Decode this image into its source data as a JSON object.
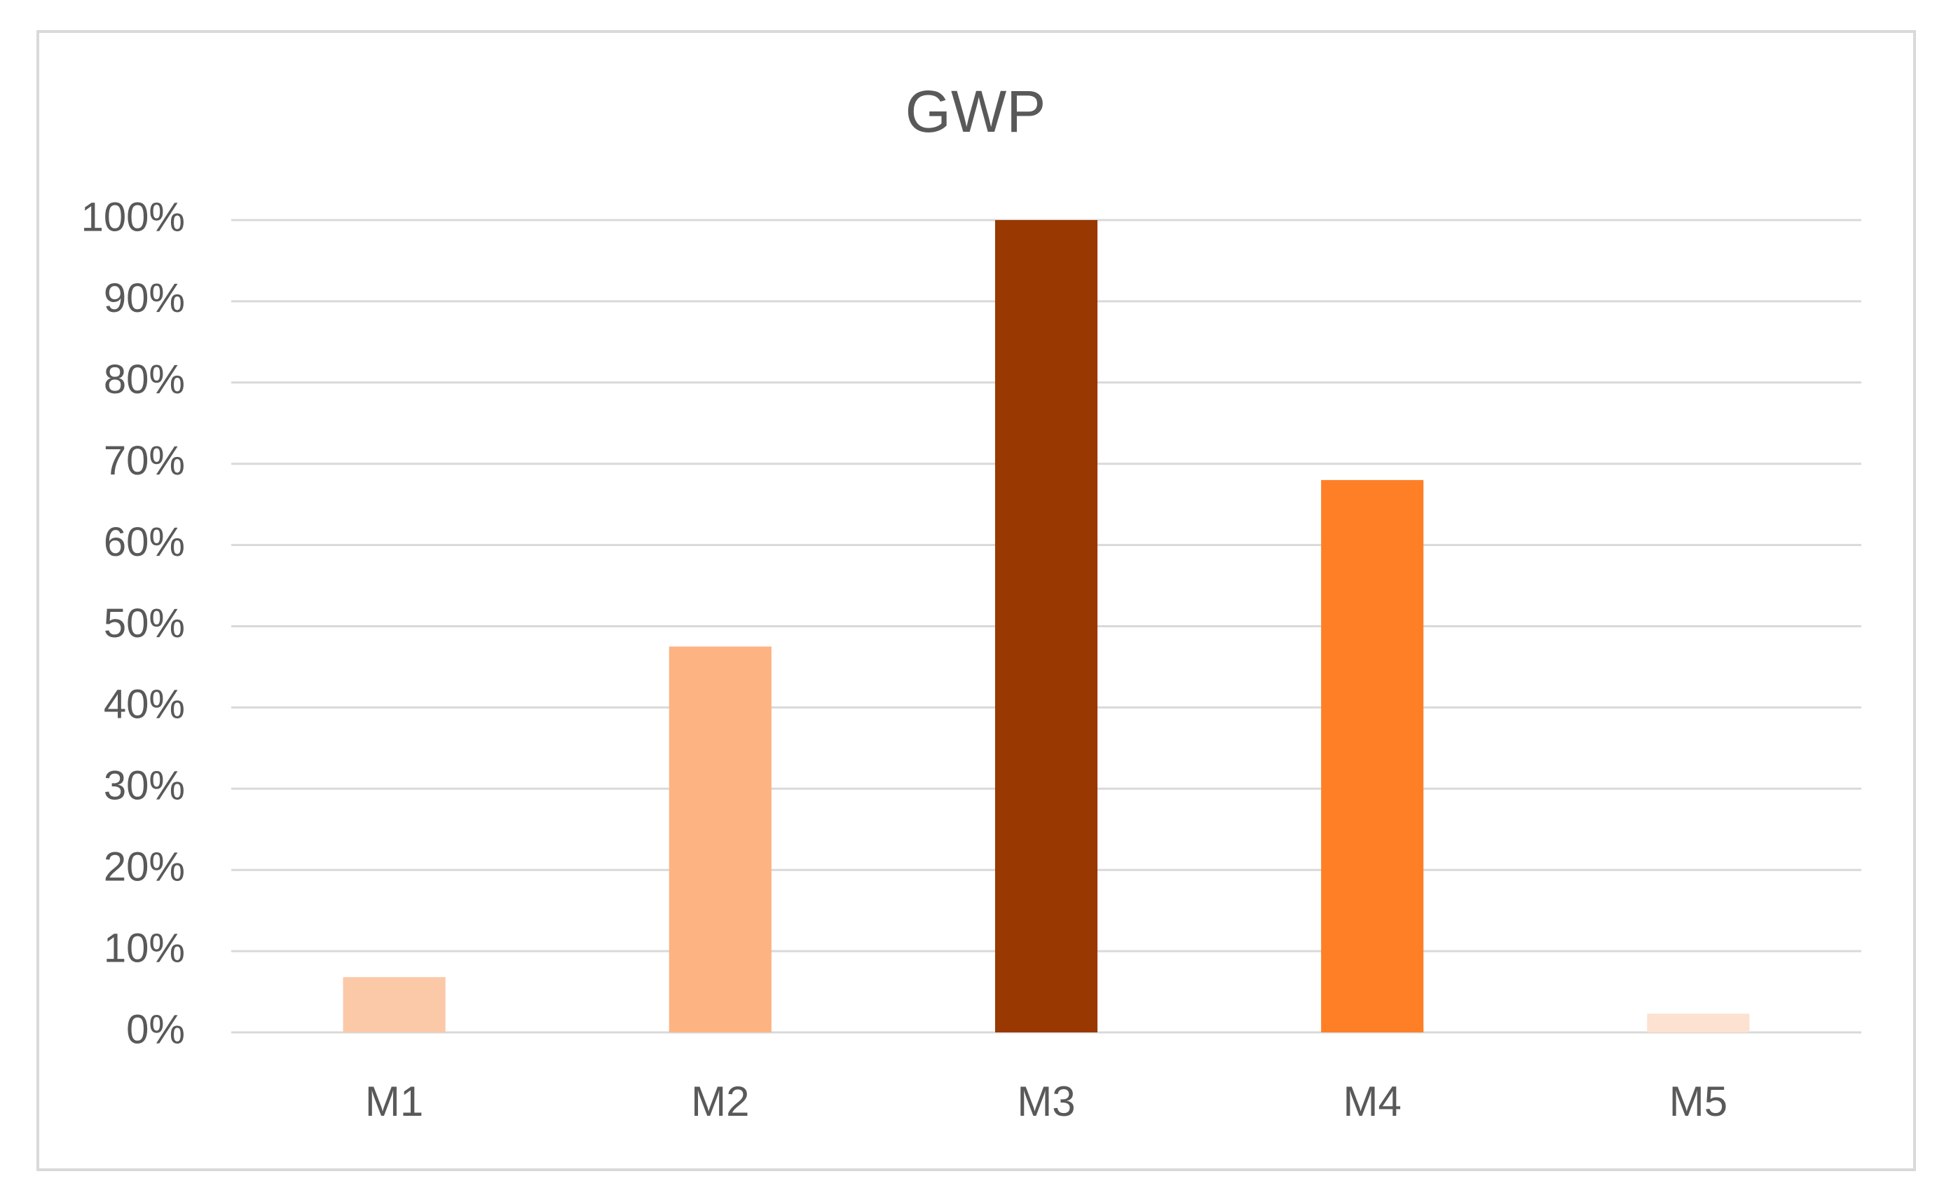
{
  "chart_data": {
    "type": "bar",
    "title": "GWP",
    "categories": [
      "M1",
      "M2",
      "M3",
      "M4",
      "M5"
    ],
    "values": [
      6.8,
      47.5,
      100,
      68,
      2.3
    ],
    "colors": [
      "#fbc8a8",
      "#fdb382",
      "#993800",
      "#ff7f27",
      "#fde1d1"
    ],
    "ylim": [
      0,
      100
    ],
    "yticks": [
      {
        "value": 0,
        "label": "0%"
      },
      {
        "value": 10,
        "label": "10%"
      },
      {
        "value": 20,
        "label": "20%"
      },
      {
        "value": 30,
        "label": "30%"
      },
      {
        "value": 40,
        "label": "40%"
      },
      {
        "value": 50,
        "label": "50%"
      },
      {
        "value": 60,
        "label": "60%"
      },
      {
        "value": 70,
        "label": "70%"
      },
      {
        "value": 80,
        "label": "80%"
      },
      {
        "value": 90,
        "label": "90%"
      },
      {
        "value": 100,
        "label": "100%"
      }
    ],
    "grid": true
  }
}
